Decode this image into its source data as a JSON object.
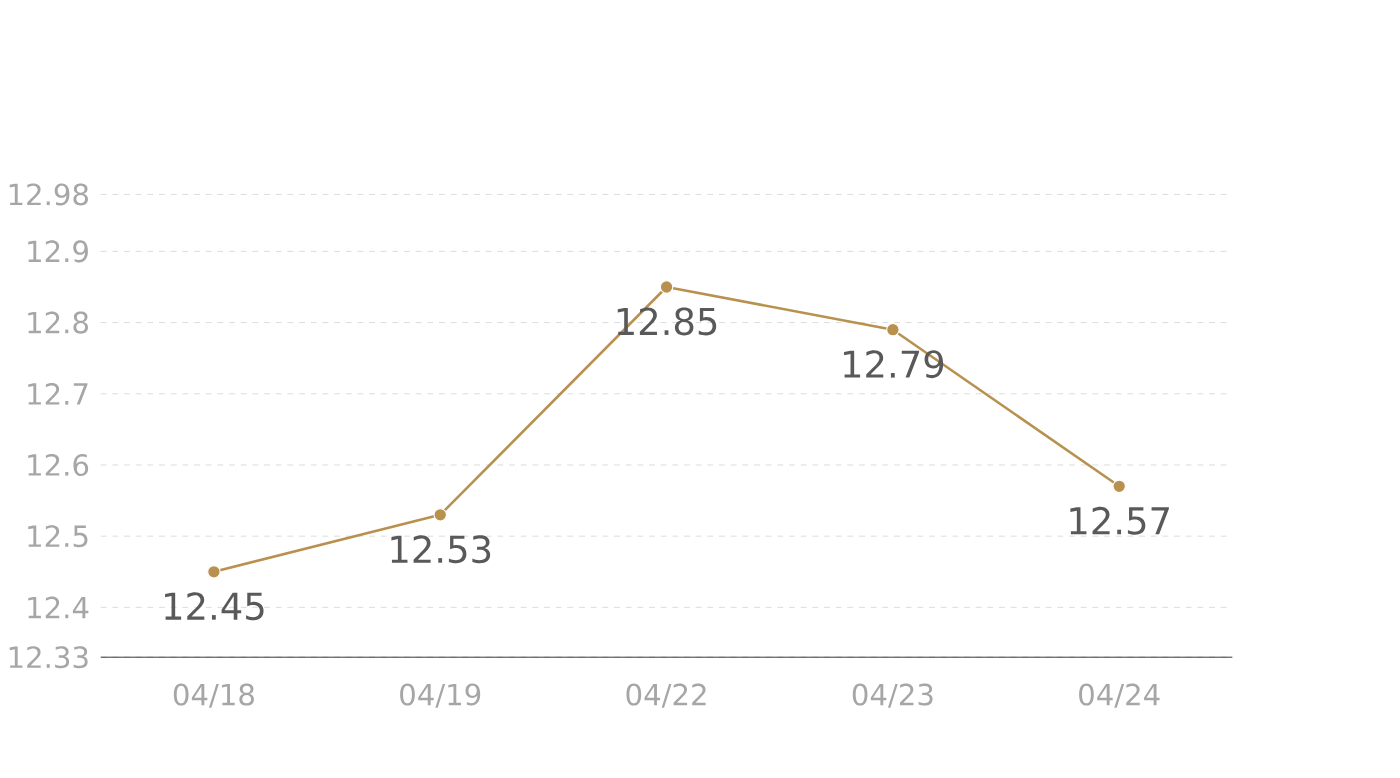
{
  "chart_data": {
    "type": "line",
    "categories": [
      "04/18",
      "04/19",
      "04/22",
      "04/23",
      "04/24"
    ],
    "series": [
      {
        "color": "#b8914f",
        "values": [
          12.45,
          12.53,
          12.85,
          12.79,
          12.57
        ]
      }
    ],
    "ylim": [
      12.33,
      12.98
    ],
    "yticks": [
      12.33,
      12.4,
      12.5,
      12.6,
      12.7,
      12.8,
      12.9,
      12.98
    ],
    "grid": "y",
    "marker": "circle",
    "line_style": "solid",
    "data_labels": true
  }
}
